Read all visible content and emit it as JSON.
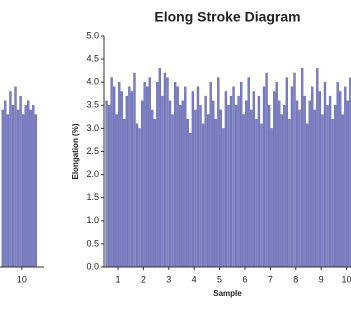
{
  "chart_data": [
    {
      "type": "bar",
      "x": [
        9.25,
        9.35,
        9.45,
        9.55,
        9.65,
        9.75,
        9.85,
        9.95,
        10.05,
        10.15,
        10.25,
        10.35,
        10.45,
        10.55
      ],
      "values": [
        3.4,
        3.6,
        3.3,
        3.8,
        3.5,
        3.9,
        3.4,
        3.7,
        3.3,
        3.5,
        3.6,
        3.4,
        3.5,
        3.3
      ],
      "xlim": [
        9.14,
        10.87
      ],
      "ylim": [
        0,
        5
      ],
      "xticks": [
        10
      ],
      "color": "#7b7fc4"
    },
    {
      "type": "bar",
      "title": "Elong Stroke Diagram",
      "xlabel": "Sample",
      "ylabel": "Elongation (%)",
      "x": [
        0.55,
        0.65,
        0.75,
        0.85,
        0.95,
        1.05,
        1.15,
        1.25,
        1.35,
        1.45,
        1.55,
        1.65,
        1.75,
        1.85,
        1.95,
        2.05,
        2.15,
        2.25,
        2.35,
        2.45,
        2.55,
        2.65,
        2.75,
        2.85,
        2.95,
        3.05,
        3.15,
        3.25,
        3.35,
        3.45,
        3.55,
        3.65,
        3.75,
        3.85,
        3.95,
        4.05,
        4.15,
        4.25,
        4.35,
        4.45,
        4.55,
        4.65,
        4.75,
        4.85,
        4.95,
        5.05,
        5.15,
        5.25,
        5.35,
        5.45,
        5.55,
        5.65,
        5.75,
        5.85,
        5.95,
        6.05,
        6.15,
        6.25,
        6.35,
        6.45,
        6.55,
        6.65,
        6.75,
        6.85,
        6.95,
        7.05,
        7.15,
        7.25,
        7.35,
        7.45,
        7.55,
        7.65,
        7.75,
        7.85,
        7.95,
        8.05,
        8.15,
        8.25,
        8.35,
        8.45,
        8.55,
        8.65,
        8.75,
        8.85,
        8.95,
        9.05,
        9.15,
        9.25,
        9.35,
        9.45,
        9.55,
        9.65,
        9.75,
        9.85,
        9.95,
        10.05,
        10.15,
        10.25,
        10.35,
        10.45
      ],
      "values": [
        3.6,
        3.5,
        4.1,
        3.9,
        3.3,
        4.0,
        3.8,
        3.2,
        3.7,
        3.9,
        3.8,
        4.2,
        3.1,
        3.0,
        3.6,
        4.0,
        3.9,
        4.1,
        3.4,
        3.2,
        4.0,
        4.3,
        3.7,
        4.2,
        4.1,
        3.6,
        3.3,
        4.0,
        3.9,
        3.5,
        3.6,
        3.9,
        3.2,
        2.9,
        3.8,
        3.4,
        3.9,
        3.5,
        3.1,
        3.7,
        3.3,
        4.0,
        3.6,
        3.2,
        4.1,
        3.4,
        3.0,
        3.8,
        3.5,
        3.7,
        3.9,
        3.5,
        3.7,
        4.0,
        3.3,
        3.6,
        4.1,
        3.4,
        3.8,
        3.2,
        3.7,
        3.1,
        3.9,
        4.2,
        3.5,
        3.0,
        3.8,
        4.0,
        3.6,
        3.3,
        3.5,
        4.1,
        3.2,
        3.9,
        4.2,
        3.6,
        3.4,
        4.3,
        3.7,
        3.1,
        3.6,
        3.9,
        3.4,
        4.3,
        3.8,
        3.3,
        4.0,
        3.5,
        3.7,
        3.2,
        3.5,
        4.0,
        3.8,
        3.3,
        3.9,
        3.6,
        4.1,
        3.4,
        3.7,
        3.5
      ],
      "xlim": [
        0.45,
        10.45
      ],
      "ylim": [
        0,
        5
      ],
      "xticks": [
        1,
        2,
        3,
        4,
        5,
        6,
        7,
        8,
        9,
        10
      ],
      "yticks": [
        {
          "value": 0,
          "label": "0.0"
        },
        0.5,
        {
          "value": 1,
          "label": "1.0"
        },
        1.5,
        {
          "value": 2,
          "label": "2.0"
        },
        2.5,
        {
          "value": 3,
          "label": "3.0"
        },
        3.5,
        {
          "value": 4,
          "label": "4.0"
        },
        4.5,
        {
          "value": 5,
          "label": "5.0"
        }
      ],
      "color": "#7b7fc4"
    }
  ]
}
